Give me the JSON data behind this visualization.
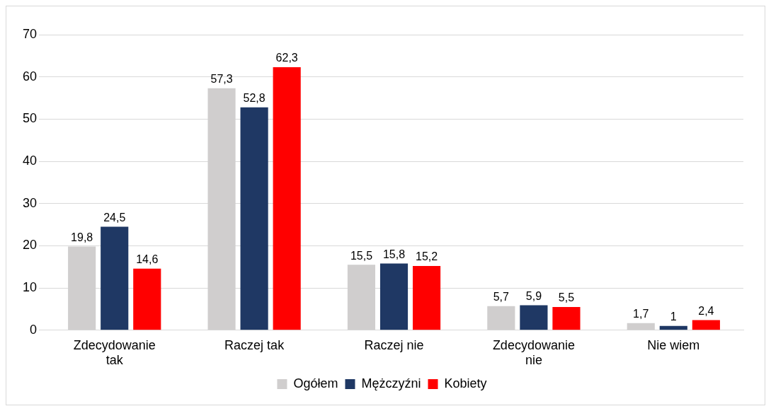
{
  "chart_data": {
    "type": "bar",
    "categories": [
      "Zdecydowanie tak",
      "Raczej tak",
      "Raczej nie",
      "Zdecydowanie nie",
      "Nie wiem"
    ],
    "series": [
      {
        "name": "Ogółem",
        "color": "#d0cece",
        "values": [
          19.8,
          57.3,
          15.5,
          5.7,
          1.7
        ],
        "value_labels": [
          "19,8",
          "57,3",
          "15,5",
          "5,7",
          "1,7"
        ]
      },
      {
        "name": "Mężczyźni",
        "color": "#1f3864",
        "values": [
          24.5,
          52.8,
          15.8,
          5.9,
          1
        ],
        "value_labels": [
          "24,5",
          "52,8",
          "15,8",
          "5,9",
          "1"
        ]
      },
      {
        "name": "Kobiety",
        "color": "#ff0000",
        "values": [
          14.6,
          62.3,
          15.2,
          5.5,
          2.4
        ],
        "value_labels": [
          "14,6",
          "62,3",
          "15,2",
          "5,5",
          "2,4"
        ]
      }
    ],
    "ylim": [
      0,
      70
    ],
    "yticks": [
      0,
      10,
      20,
      30,
      40,
      50,
      60,
      70
    ],
    "grid": "y",
    "legend": "bottom"
  }
}
